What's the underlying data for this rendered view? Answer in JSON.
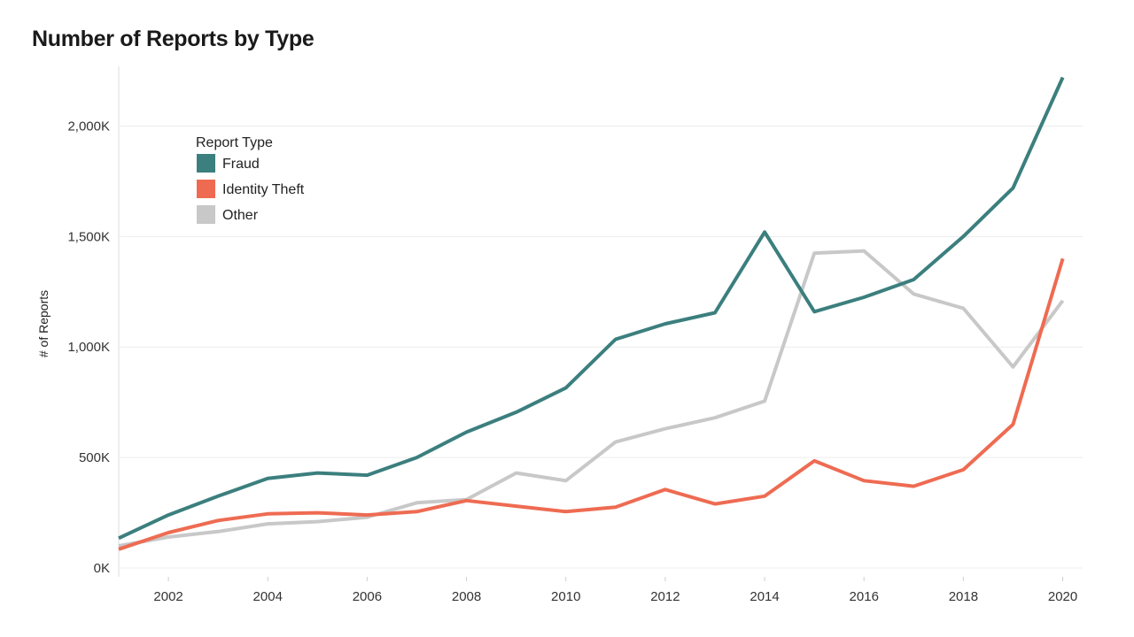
{
  "chart_data": {
    "type": "line",
    "title": "Number of Reports by Type",
    "xlabel": "",
    "ylabel": "# of Reports",
    "x": [
      2001,
      2002,
      2003,
      2004,
      2005,
      2006,
      2007,
      2008,
      2009,
      2010,
      2011,
      2012,
      2013,
      2014,
      2015,
      2016,
      2017,
      2018,
      2019,
      2020
    ],
    "xlim": [
      2001,
      2020.4
    ],
    "ylim": [
      -40,
      2270
    ],
    "x_ticks": [
      2002,
      2004,
      2006,
      2008,
      2010,
      2012,
      2014,
      2016,
      2018,
      2020
    ],
    "x_tick_labels": [
      "2002",
      "2004",
      "2006",
      "2008",
      "2010",
      "2012",
      "2014",
      "2016",
      "2018",
      "2020"
    ],
    "y_ticks": [
      0,
      500,
      1000,
      1500,
      2000
    ],
    "y_tick_labels": [
      "0K",
      "500K",
      "1,000K",
      "1,500K",
      "2,000K"
    ],
    "y_unit": "thousands of reports",
    "grid": "horizontal",
    "legend_title": "Report Type",
    "legend_position": "top-left",
    "series": [
      {
        "name": "Fraud",
        "color": "#3b7f7e",
        "values": [
          135,
          240,
          325,
          405,
          430,
          420,
          500,
          615,
          705,
          815,
          1035,
          1105,
          1155,
          1520,
          1160,
          1225,
          1305,
          1500,
          1720,
          2220
        ]
      },
      {
        "name": "Identity Theft",
        "color": "#ee6b52",
        "values": [
          85,
          160,
          215,
          245,
          250,
          240,
          255,
          305,
          280,
          255,
          275,
          355,
          290,
          325,
          485,
          395,
          370,
          445,
          650,
          1400
        ]
      },
      {
        "name": "Other",
        "color": "#c8c8c8",
        "values": [
          100,
          140,
          165,
          200,
          210,
          230,
          295,
          310,
          430,
          395,
          570,
          630,
          680,
          755,
          1425,
          1435,
          1240,
          1175,
          910,
          1210
        ]
      }
    ]
  }
}
